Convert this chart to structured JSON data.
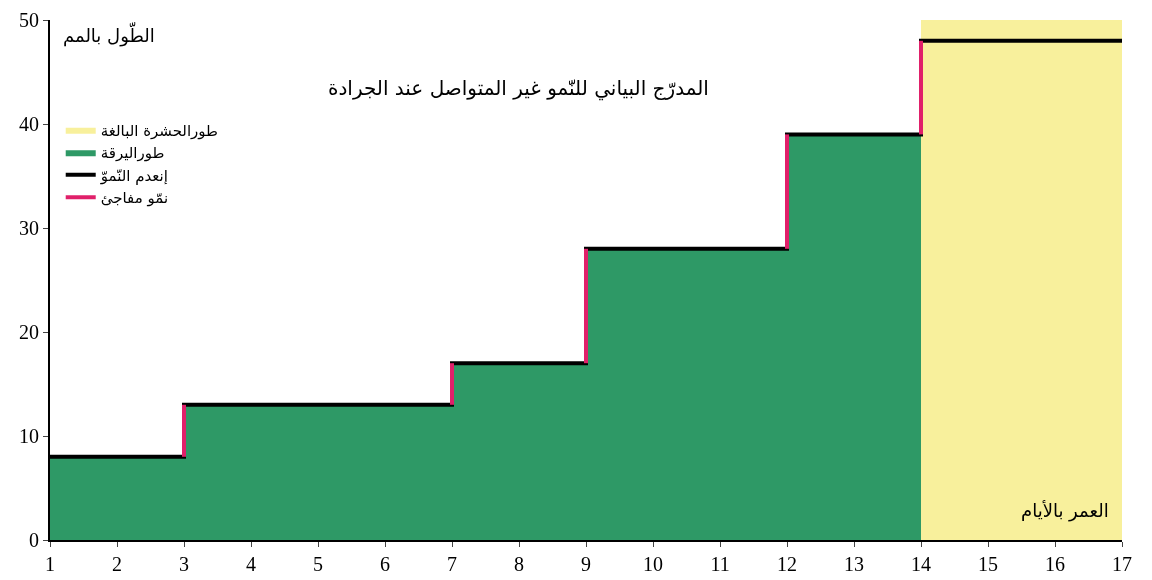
{
  "chart_data": {
    "type": "step",
    "title": "المدرّج البياني للنّمو غير المتواصل عند الجرادة",
    "ylabel": "الطّول بالمم",
    "xlabel": "العمر بالأيام",
    "xlim": [
      1,
      17
    ],
    "xticks": [
      1,
      2,
      3,
      4,
      5,
      6,
      7,
      8,
      9,
      10,
      11,
      12,
      13,
      14,
      15,
      16,
      17
    ],
    "ylim": [
      0,
      50
    ],
    "yticks": [
      0,
      10,
      20,
      30,
      40,
      50
    ],
    "grid": false,
    "legend": "top left",
    "series": [
      {
        "name": "طورالحشرة البالغة",
        "type": "area",
        "color": "#f8f09c",
        "x": [
          14,
          17
        ],
        "values": [
          50,
          50
        ]
      },
      {
        "name": "طوراليرقة",
        "type": "area",
        "color": "#2e9966",
        "x": [
          1,
          3,
          7,
          9,
          12,
          14
        ],
        "values": [
          8,
          13,
          17,
          28,
          39,
          39
        ]
      },
      {
        "name": "إنعدم النّموّ",
        "type": "step",
        "color": "#000000",
        "x": [
          1,
          3,
          7,
          9,
          12,
          14,
          17
        ],
        "values": [
          8,
          13,
          17,
          28,
          39,
          48,
          48
        ]
      },
      {
        "name": "نمّو مفاجئ",
        "type": "line",
        "color": "#e0206a",
        "x": [
          3,
          3
        ],
        "values": [
          8,
          13
        ]
      },
      {
        "type": "line",
        "color": "#e0206a",
        "x": [
          7,
          7
        ],
        "values": [
          13,
          17
        ]
      },
      {
        "type": "line",
        "color": "#e0206a",
        "x": [
          9,
          9
        ],
        "values": [
          17,
          28
        ]
      },
      {
        "type": "line",
        "color": "#e0206a",
        "x": [
          12,
          12
        ],
        "values": [
          28,
          39
        ]
      },
      {
        "type": "line",
        "color": "#e0206a",
        "x": [
          14,
          14
        ],
        "values": [
          39,
          48
        ]
      }
    ]
  }
}
